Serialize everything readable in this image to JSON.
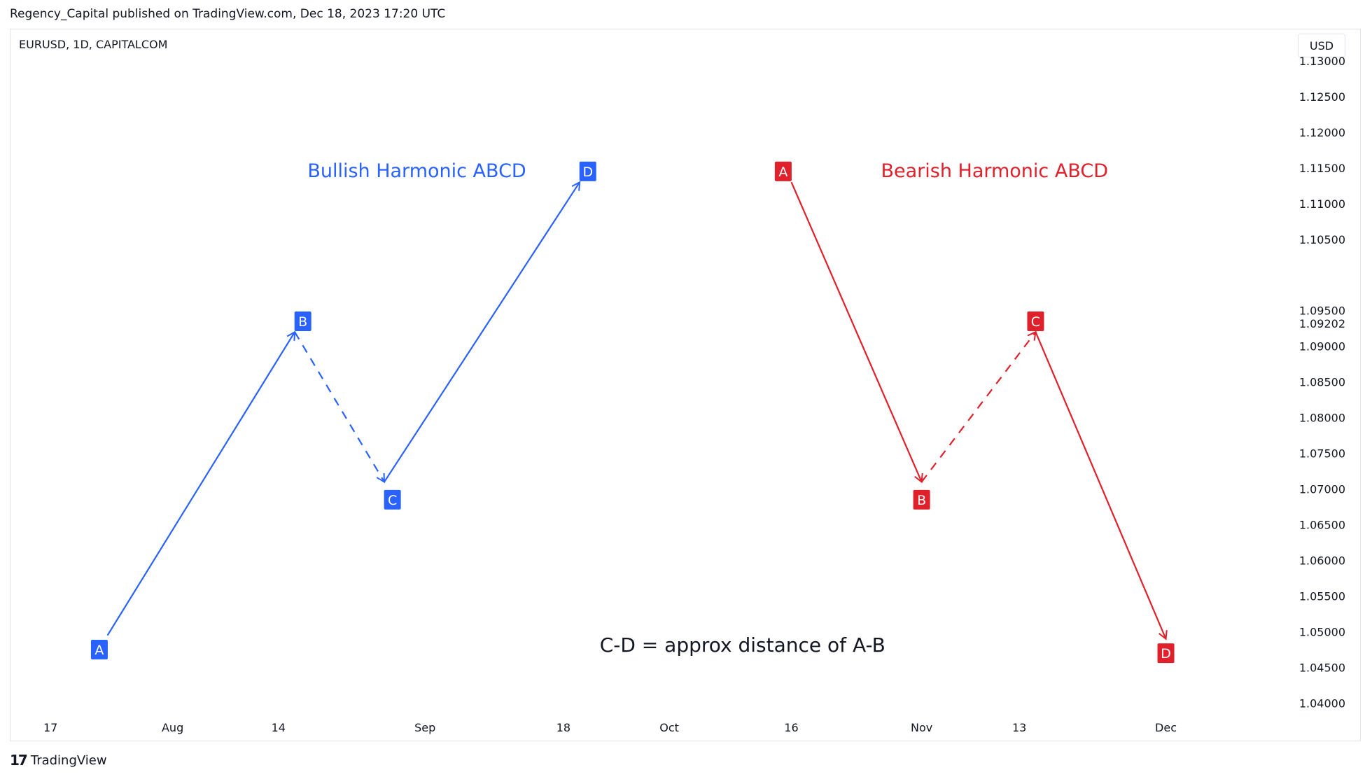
{
  "header": {
    "published": "Regency_Capital published on TradingView.com, Dec 18, 2023 17:20 UTC"
  },
  "chart_header": {
    "symbol": "EURUSD, 1D, CAPITALCOM",
    "currency": "USD"
  },
  "footer": {
    "brand": "TradingView",
    "logo_icon": "tradingview-logo-icon"
  },
  "colors": {
    "bullish": "#2962ff",
    "bearish": "#e0202a",
    "axis_text": "#131722",
    "border": "#e0e3eb"
  },
  "chart_data": {
    "type": "line",
    "y_axis": {
      "side": "right",
      "range": [
        1.0375,
        1.1345
      ],
      "ticks": [
        "1.04000",
        "1.04500",
        "1.05000",
        "1.05500",
        "1.06000",
        "1.06500",
        "1.07000",
        "1.07500",
        "1.08000",
        "1.08500",
        "1.09000",
        "1.09500",
        "1.10500",
        "1.11000",
        "1.11500",
        "1.12000",
        "1.12500",
        "1.13000"
      ],
      "current_price_label": "1.09202"
    },
    "x_axis": {
      "range": [
        "2023-07-12",
        "2023-12-16"
      ],
      "ticks": [
        {
          "date": "2023-07-17",
          "label": "17"
        },
        {
          "date": "2023-08-01",
          "label": "Aug"
        },
        {
          "date": "2023-08-14",
          "label": "14"
        },
        {
          "date": "2023-09-01",
          "label": "Sep"
        },
        {
          "date": "2023-09-18",
          "label": "18"
        },
        {
          "date": "2023-10-01",
          "label": "Oct"
        },
        {
          "date": "2023-10-16",
          "label": "16"
        },
        {
          "date": "2023-11-01",
          "label": "Nov"
        },
        {
          "date": "2023-11-13",
          "label": "13"
        },
        {
          "date": "2023-12-01",
          "label": "Dec"
        }
      ]
    },
    "series": [
      {
        "name": "Bullish Harmonic ABCD",
        "color": "#2962ff",
        "points": [
          {
            "label": "A",
            "date": "2023-07-24",
            "price": 1.0495
          },
          {
            "label": "B",
            "date": "2023-08-16",
            "price": 1.092
          },
          {
            "label": "C",
            "date": "2023-08-27",
            "price": 1.071
          },
          {
            "label": "D",
            "date": "2023-09-20",
            "price": 1.113
          }
        ],
        "labels": [
          {
            "text": "A",
            "date": "2023-07-23",
            "price": 1.0475
          },
          {
            "text": "B",
            "date": "2023-08-17",
            "price": 1.0935
          },
          {
            "text": "C",
            "date": "2023-08-28",
            "price": 1.0685
          },
          {
            "text": "D",
            "date": "2023-09-21",
            "price": 1.1145
          }
        ]
      },
      {
        "name": "Bearish Harmonic ABCD",
        "color": "#e0202a",
        "points": [
          {
            "label": "A",
            "date": "2023-10-16",
            "price": 1.113
          },
          {
            "label": "B",
            "date": "2023-11-01",
            "price": 1.071
          },
          {
            "label": "C",
            "date": "2023-11-15",
            "price": 1.092
          },
          {
            "label": "D",
            "date": "2023-12-01",
            "price": 1.049
          }
        ],
        "labels": [
          {
            "text": "A",
            "date": "2023-10-15",
            "price": 1.1145
          },
          {
            "text": "B",
            "date": "2023-11-01",
            "price": 1.0685
          },
          {
            "text": "C",
            "date": "2023-11-15",
            "price": 1.0935
          },
          {
            "text": "D",
            "date": "2023-12-01",
            "price": 1.047
          }
        ]
      }
    ],
    "annotations": [
      {
        "text": "Bullish Harmonic ABCD",
        "date": "2023-08-31",
        "price": 1.1145,
        "color": "#2962ff"
      },
      {
        "text": "Bearish Harmonic ABCD",
        "date": "2023-10-27",
        "price": 1.1145,
        "color": "#e0202a"
      },
      {
        "text": "C-D = approx distance of A-B",
        "date": "2023-10-10",
        "price": 1.048,
        "color": "#131722"
      }
    ]
  }
}
